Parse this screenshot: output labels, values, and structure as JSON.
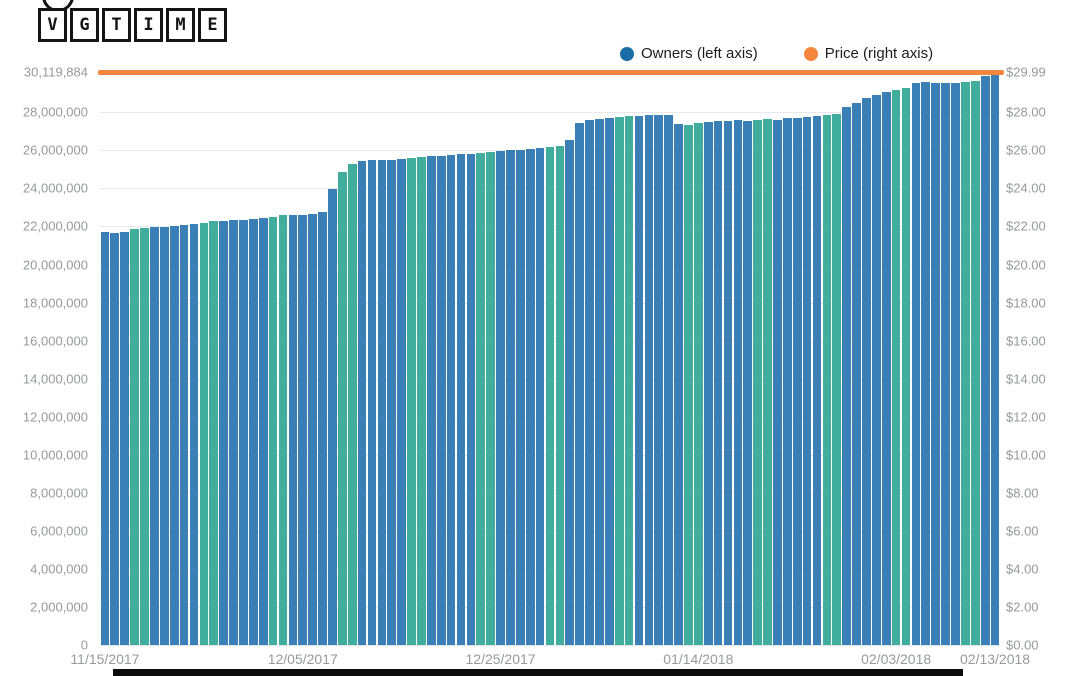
{
  "logo": {
    "text": "VGTIME",
    "letters": [
      "V",
      "G",
      "T",
      "I",
      "M",
      "E"
    ]
  },
  "legend": [
    {
      "label": "Owners (left axis)",
      "color": "#1a6da5"
    },
    {
      "label": "Price (right axis)",
      "color": "#f5873c"
    }
  ],
  "colors": {
    "bar_blue": "#3a80b6",
    "bar_teal": "#41ad9c",
    "price_line": "#f5873c",
    "grid": "#e7e8ea",
    "axis_text": "#97999c",
    "legend_text": "#1d1d1f"
  },
  "chart_data": {
    "type": "bar",
    "title": "",
    "xlabel": "",
    "ylabel_left": "Owners",
    "ylabel_right": "Price",
    "date_start": "11/15/2017",
    "date_end": "02/13/2018",
    "x_ticks": [
      {
        "label": "11/15/2017",
        "day": 0
      },
      {
        "label": "12/05/2017",
        "day": 20
      },
      {
        "label": "12/25/2017",
        "day": 40
      },
      {
        "label": "01/14/2018",
        "day": 60
      },
      {
        "label": "02/03/2018",
        "day": 80
      },
      {
        "label": "02/13/2018",
        "day": 90
      }
    ],
    "y_left_axis": {
      "max": 30119884,
      "tick_step": 2000000,
      "top_label": "30,119,884",
      "tick_labels": [
        "0",
        "2,000,000",
        "4,000,000",
        "6,000,000",
        "8,000,000",
        "10,000,000",
        "12,000,000",
        "14,000,000",
        "16,000,000",
        "18,000,000",
        "20,000,000",
        "22,000,000",
        "24,000,000",
        "26,000,000",
        "28,000,000"
      ]
    },
    "y_right_axis": {
      "max": 29.99,
      "tick_step": 2.0,
      "top_label": "$29.99",
      "tick_labels": [
        "$0.00",
        "$2.00",
        "$4.00",
        "$6.00",
        "$8.00",
        "$10.00",
        "$12.00",
        "$14.00",
        "$16.00",
        "$18.00",
        "$20.00",
        "$22.00",
        "$24.00",
        "$26.00",
        "$28.00"
      ]
    },
    "weekend_mod_indices": [
      3,
      4
    ],
    "series": [
      {
        "name": "Owners (left axis)",
        "axis": "left",
        "values": [
          21700000,
          21670000,
          21720000,
          21850000,
          21930000,
          21950000,
          21980000,
          22020000,
          22080000,
          22120000,
          22200000,
          22280000,
          22300000,
          22330000,
          22360000,
          22400000,
          22420000,
          22500000,
          22580000,
          22600000,
          22630000,
          22680000,
          22750000,
          23950000,
          24850000,
          25300000,
          25450000,
          25480000,
          25500000,
          25520000,
          25550000,
          25600000,
          25650000,
          25680000,
          25720000,
          25760000,
          25800000,
          25820000,
          25880000,
          25920000,
          25950000,
          26000000,
          26020000,
          26050000,
          26100000,
          26180000,
          26250000,
          26550000,
          27450000,
          27600000,
          27650000,
          27700000,
          27750000,
          27800000,
          27820000,
          27850000,
          27880000,
          27850000,
          27400000,
          27350000,
          27420000,
          27480000,
          27520000,
          27550000,
          27580000,
          27550000,
          27600000,
          27650000,
          27620000,
          27680000,
          27720000,
          27750000,
          27800000,
          27850000,
          27900000,
          28300000,
          28500000,
          28750000,
          28900000,
          29050000,
          29150000,
          29300000,
          29550000,
          29580000,
          29550000,
          29520000,
          29550000,
          29600000,
          29650000,
          29900000,
          30119884
        ]
      },
      {
        "name": "Price (right axis)",
        "axis": "right",
        "constant_value": 29.99
      }
    ]
  }
}
